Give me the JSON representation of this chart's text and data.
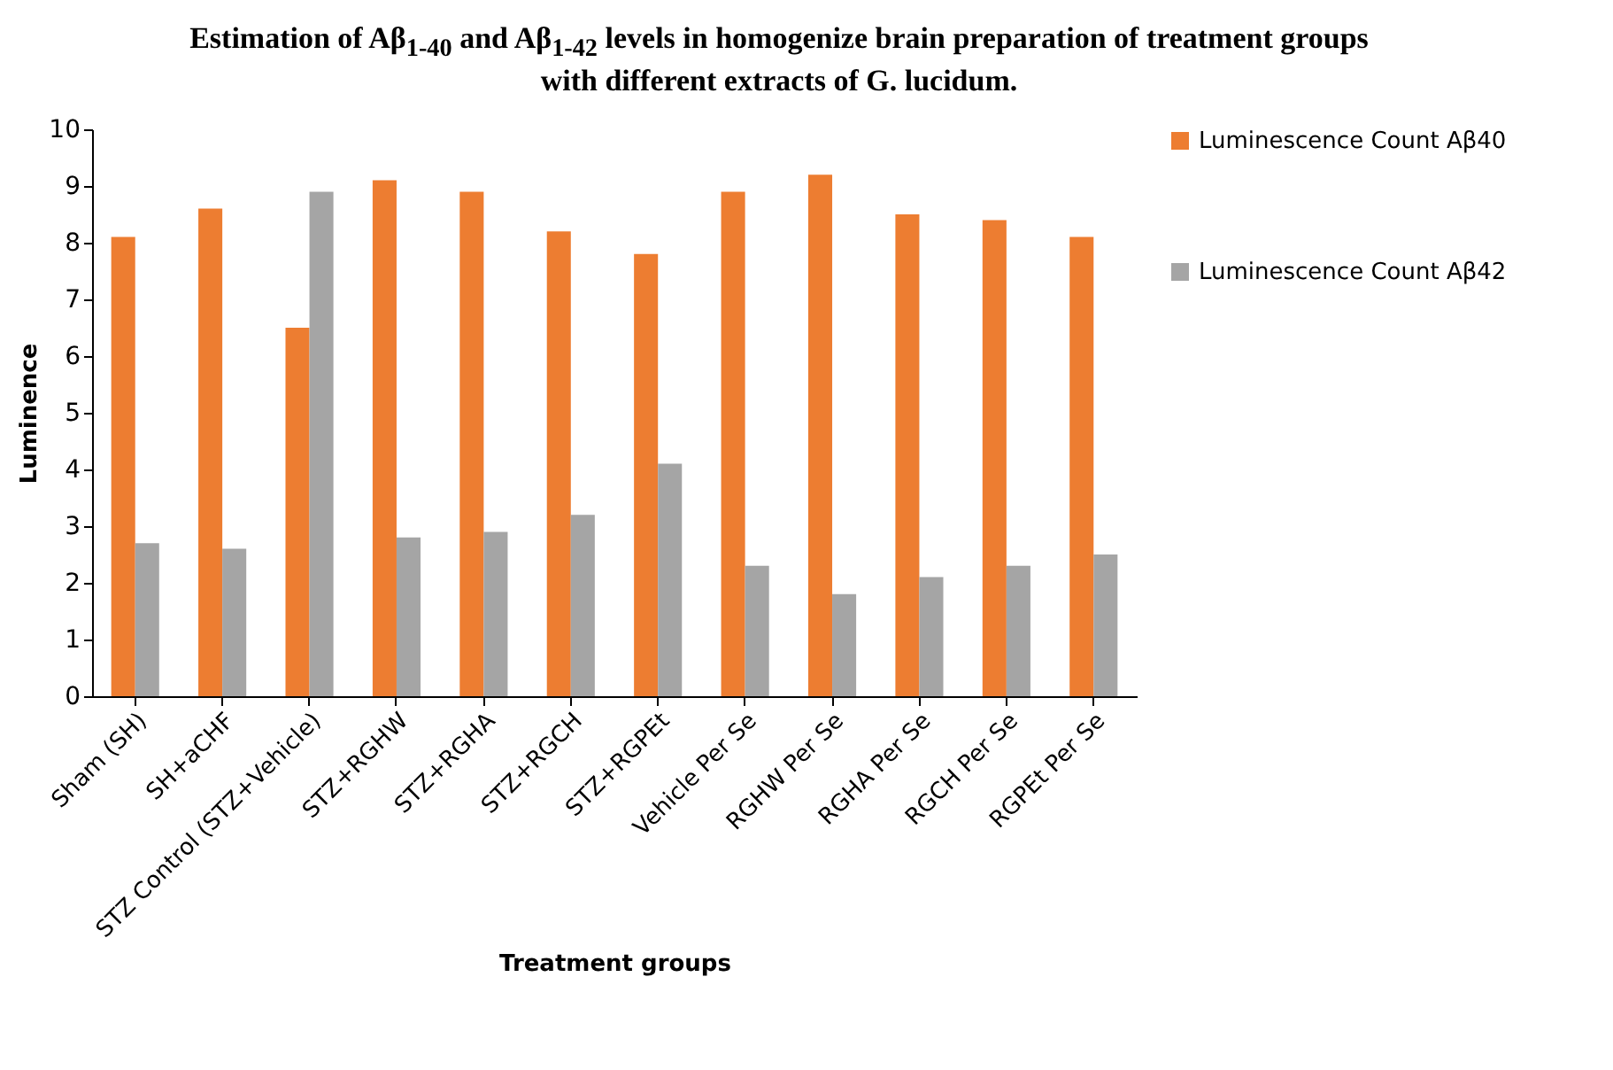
{
  "chart_data": {
    "type": "bar",
    "title": "Estimation of Aβ$_{1-40}$ and Aβ$_{1-42}$ levels in homogenize brain preparation of treatment groups with different extracts of G. lucidum.",
    "xlabel": "Treatment groups",
    "ylabel": "Luminence",
    "categories": [
      "Sham (SH)",
      "SH+aCHF",
      "STZ Control (STZ+Vehicle)",
      "STZ+RGHW",
      "STZ+RGHA",
      "STZ+RGCH",
      "STZ+RGPEt",
      "Vehicle Per Se",
      "RGHW Per Se",
      "RGHA Per Se",
      "RGCH Per Se",
      "RGPEt Per Se"
    ],
    "series": [
      {
        "name": "Luminescence Count Aβ40",
        "color": "#ed7d31",
        "values": [
          8.1,
          8.6,
          6.5,
          9.1,
          8.9,
          8.2,
          7.8,
          8.9,
          9.2,
          8.5,
          8.4,
          8.1
        ]
      },
      {
        "name": "Luminescence Count Aβ42",
        "color": "#a5a5a5",
        "values": [
          2.7,
          2.6,
          8.9,
          2.8,
          2.9,
          3.2,
          4.1,
          2.3,
          1.8,
          2.1,
          2.3,
          2.5
        ]
      }
    ],
    "ylim": [
      0,
      10
    ],
    "yticks": [
      0,
      1,
      2,
      3,
      4,
      5,
      6,
      7,
      8,
      9,
      10
    ],
    "grid": false,
    "legend": "right"
  }
}
